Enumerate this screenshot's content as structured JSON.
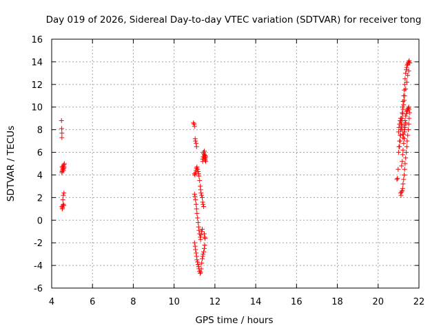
{
  "chart_data": {
    "type": "scatter",
    "title": "Day 019 of 2026, Sidereal Day-to-day VTEC variation (SDTVAR) for receiver tong",
    "xlabel": "GPS time / hours",
    "ylabel": "SDTVAR / TECUs",
    "xlim": [
      4,
      22
    ],
    "ylim": [
      -6,
      16
    ],
    "xticks": [
      4,
      6,
      8,
      10,
      12,
      14,
      16,
      18,
      20,
      22
    ],
    "yticks": [
      -6,
      -4,
      -2,
      0,
      2,
      4,
      6,
      8,
      10,
      12,
      14,
      16
    ],
    "grid": true,
    "marker": "+",
    "colors": {
      "series": "#ff0000",
      "grid": "#a0a0a0",
      "axis": "#000000"
    },
    "series": [
      {
        "name": "SDTVAR",
        "x": [
          4.48,
          4.49,
          4.5,
          4.5,
          4.51,
          4.51,
          4.5,
          4.52,
          4.53,
          4.55,
          4.57,
          4.6,
          4.62,
          4.55,
          4.58,
          4.6,
          4.61,
          4.5,
          4.52,
          4.53,
          4.55,
          4.57,
          4.6,
          4.55,
          4.57,
          4.6,
          10.95,
          10.98,
          11.0,
          11.03,
          11.05,
          11.08,
          11.1,
          11.0,
          11.02,
          11.05,
          11.08,
          11.1,
          11.12,
          11.15,
          11.18,
          11.2,
          11.22,
          11.25,
          11.28,
          11.3,
          11.32,
          11.35,
          11.38,
          11.4,
          11.42,
          11.45,
          11.48,
          11.5,
          11.52,
          11.55,
          11.0,
          11.02,
          11.05,
          11.08,
          11.1,
          11.12,
          11.15,
          11.18,
          11.2,
          11.22,
          11.25,
          11.28,
          11.3,
          11.32,
          11.35,
          11.38,
          11.4,
          11.42,
          11.45,
          11.48,
          11.5,
          11.52,
          11.0,
          11.03,
          11.05,
          11.08,
          11.1,
          11.12,
          11.15,
          11.18,
          11.2,
          11.22,
          11.25,
          11.28,
          11.3,
          11.33,
          11.35,
          11.38,
          11.4,
          11.42,
          11.45,
          11.48,
          11.5,
          11.4,
          11.42,
          11.45,
          11.48,
          11.5,
          11.52,
          11.55,
          11.45,
          11.48,
          11.5,
          11.52,
          20.92,
          20.95,
          20.98,
          21.0,
          21.02,
          21.05,
          21.08,
          21.1,
          21.12,
          21.15,
          21.18,
          21.2,
          21.22,
          21.25,
          21.28,
          21.3,
          21.32,
          21.35,
          21.38,
          21.4,
          21.42,
          21.45,
          21.48,
          21.5,
          21.52,
          21.55,
          21.0,
          21.02,
          21.05,
          21.08,
          21.1,
          21.12,
          21.15,
          21.18,
          21.2,
          21.22,
          21.25,
          21.28,
          21.3,
          21.32,
          21.35,
          21.38,
          21.4,
          21.42,
          21.45,
          21.48,
          21.5,
          21.52,
          21.1,
          21.12,
          21.15,
          21.18,
          21.2,
          21.22,
          21.25,
          21.28,
          21.3,
          21.32,
          21.35,
          21.38,
          21.4,
          21.42,
          21.45,
          21.48,
          21.5,
          21.52,
          21.55,
          21.05,
          21.08,
          21.1,
          21.12,
          21.15,
          21.18,
          21.2,
          21.22,
          21.25,
          21.28,
          21.3,
          21.35,
          21.4,
          21.45,
          21.5,
          21.15,
          21.18,
          21.2,
          21.22,
          21.25,
          21.28,
          21.3,
          21.32,
          21.35
        ],
        "y": [
          8.8,
          8.1,
          7.7,
          7.3,
          4.7,
          4.3,
          4.2,
          4.4,
          4.7,
          4.6,
          4.8,
          4.9,
          5.0,
          4.5,
          4.4,
          4.6,
          4.7,
          1.2,
          1.0,
          1.1,
          1.3,
          1.4,
          1.3,
          1.8,
          2.2,
          2.4,
          8.6,
          8.5,
          8.3,
          7.2,
          7.0,
          6.8,
          6.5,
          4.1,
          4.0,
          4.2,
          4.4,
          4.6,
          4.7,
          4.5,
          4.3,
          4.1,
          3.9,
          3.5,
          3.0,
          2.7,
          2.4,
          2.2,
          2.0,
          5.4,
          5.6,
          6.0,
          5.8,
          5.5,
          5.7,
          5.2,
          2.3,
          2.1,
          1.8,
          1.4,
          1.0,
          0.6,
          0.2,
          -0.2,
          -0.6,
          -0.9,
          -1.2,
          -1.5,
          -1.7,
          -1.3,
          -1.0,
          -0.8,
          1.6,
          1.4,
          1.2,
          -1.2,
          -1.5,
          -1.6,
          -2.0,
          -2.3,
          -2.6,
          -2.9,
          -3.2,
          -3.5,
          -3.7,
          -3.9,
          -4.1,
          -4.3,
          -4.5,
          -4.7,
          -4.6,
          -4.3,
          -3.8,
          -3.4,
          -3.2,
          -3.0,
          -2.8,
          -2.5,
          -2.2,
          5.2,
          5.4,
          5.6,
          5.8,
          5.5,
          5.3,
          5.6,
          5.9,
          6.1,
          5.7,
          5.4,
          3.6,
          3.7,
          4.5,
          6.0,
          6.5,
          7.0,
          7.5,
          8.0,
          8.5,
          9.0,
          9.5,
          10.0,
          10.5,
          11.0,
          11.5,
          12.0,
          12.5,
          13.0,
          13.3,
          13.5,
          13.7,
          13.8,
          13.9,
          14.0,
          14.1,
          13.9,
          7.8,
          8.2,
          8.5,
          8.8,
          9.0,
          8.7,
          8.3,
          8.0,
          7.6,
          7.3,
          7.6,
          8.0,
          8.4,
          8.8,
          9.2,
          9.4,
          9.6,
          9.7,
          9.8,
          9.9,
          10.0,
          9.8,
          2.4,
          2.2,
          2.5,
          2.6,
          2.8,
          3.2,
          3.6,
          4.0,
          4.5,
          5.0,
          5.5,
          6.0,
          6.5,
          7.0,
          7.5,
          8.0,
          8.5,
          9.0,
          9.5,
          6.5,
          7.0,
          7.5,
          8.0,
          8.5,
          9.0,
          9.4,
          9.8,
          10.2,
          10.6,
          11.0,
          11.6,
          12.2,
          12.8,
          13.2,
          4.8,
          5.2,
          5.8,
          6.2,
          6.8,
          7.2,
          7.8,
          8.2,
          8.6
        ]
      }
    ]
  }
}
